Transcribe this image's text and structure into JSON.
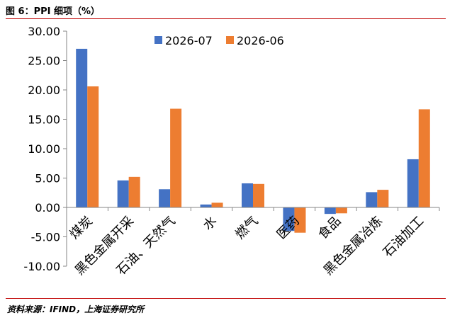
{
  "header": {
    "title": "图 6：PPI 细项（%）"
  },
  "footer": {
    "source": "资料来源：IFIND，上海证券研究所"
  },
  "colors": {
    "series_2026_07": "#4472c4",
    "series_2026_06": "#ed7d31",
    "rule": "#c00000"
  },
  "chart_data": {
    "type": "bar",
    "title": "",
    "xlabel": "",
    "ylabel": "",
    "ylim": [
      -10,
      30
    ],
    "yticks": [
      30,
      25,
      20,
      15,
      10,
      5,
      0,
      -5,
      -10
    ],
    "ytick_labels": [
      "30.00",
      "25.00",
      "20.00",
      "15.00",
      "10.00",
      "5.00",
      "0.00",
      "-5.00",
      "-10.00"
    ],
    "grid": false,
    "legend": "top-center",
    "categories": [
      "煤炭",
      "黑色金属开采",
      "石油、天然气",
      "水",
      "燃气",
      "医药",
      "食品",
      "黑色金属冶炼",
      "石油加工"
    ],
    "series": [
      {
        "name": "2026-07",
        "values": [
          27.0,
          4.6,
          3.1,
          0.5,
          4.1,
          -4.0,
          -1.1,
          2.6,
          8.2
        ]
      },
      {
        "name": "2026-06",
        "values": [
          20.6,
          5.2,
          16.8,
          0.8,
          4.0,
          -4.3,
          -1.0,
          3.0,
          16.7
        ]
      }
    ]
  }
}
